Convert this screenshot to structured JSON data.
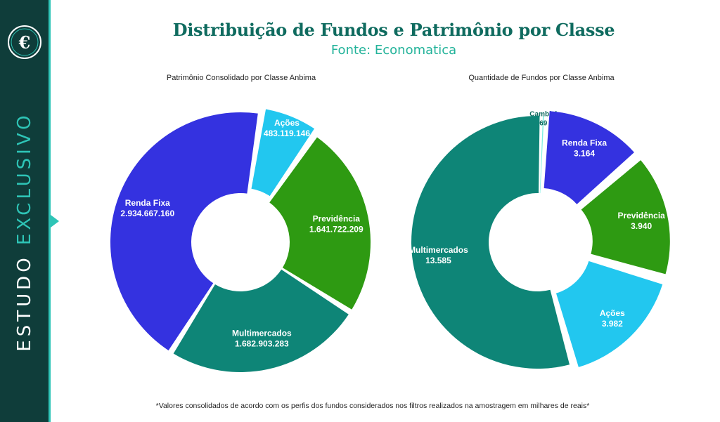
{
  "header": {
    "title": "Distribuição de Fundos e Patrimônio por Classe",
    "subtitle": "Fonte: Economatica"
  },
  "sidebar": {
    "logo_icon": "euro-sign-icon",
    "label_part1": "ESTUDO",
    "label_part2": "EXCLUSIVO"
  },
  "colors": {
    "sidebar_bg": "#0f3d3a",
    "accent": "#2ec4b6",
    "renda_fixa": "#3432e0",
    "acoes": "#22c7ef",
    "previdencia": "#2e9a12",
    "multimercados": "#0e8577",
    "cambial": "#7ef0e2"
  },
  "chart_data": [
    {
      "type": "pie",
      "title": "Patrimônio Consolidado por Classe Anbima",
      "categories": [
        "Ações",
        "Previdência",
        "Multimercados",
        "Renda Fixa"
      ],
      "values": [
        483119146,
        1641722209,
        1682903283,
        2934667160
      ],
      "labels": [
        "483.119.146",
        "1.641.722.209",
        "1.682.903.283",
        "2.934.667.160"
      ],
      "colors": [
        "#22c7ef",
        "#2e9a12",
        "#0e8577",
        "#3432e0"
      ],
      "donut": true
    },
    {
      "type": "pie",
      "title": "Quantidade de Fundos por Classe Anbima",
      "categories": [
        "Cambial",
        "Renda Fixa",
        "Previdência",
        "Ações",
        "Multimercados"
      ],
      "values": [
        69,
        3164,
        3940,
        3982,
        13585
      ],
      "labels": [
        "69",
        "3.164",
        "3.940",
        "3.982",
        "13.585"
      ],
      "colors": [
        "#7ef0e2",
        "#3432e0",
        "#2e9a12",
        "#22c7ef",
        "#0e8577"
      ],
      "donut": true
    }
  ],
  "footnote": "*Valores consolidados de acordo com os perfis dos fundos considerados nos filtros realizados na amostragem em milhares de reais*"
}
